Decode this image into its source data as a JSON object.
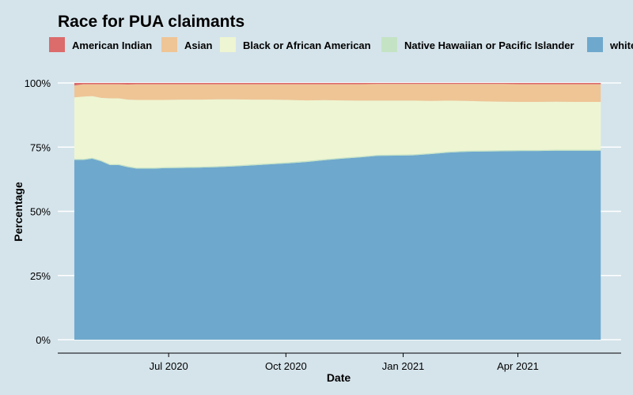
{
  "chart_data": {
    "type": "area",
    "stacked": true,
    "normalized": true,
    "title": "Race for PUA claimants",
    "xlabel": "Date",
    "ylabel": "Percentage",
    "ylim": [
      0,
      100
    ],
    "yticks": [
      "0%",
      "25%",
      "50%",
      "75%",
      "100%"
    ],
    "xticks": [
      {
        "label": "Jul 2020",
        "date": "2020-07-01"
      },
      {
        "label": "Oct 2020",
        "date": "2020-10-01"
      },
      {
        "label": "Jan 2021",
        "date": "2021-01-01"
      },
      {
        "label": "Apr 2021",
        "date": "2021-04-01"
      }
    ],
    "legend_position": "top",
    "dates": [
      "2020-04-18",
      "2020-04-25",
      "2020-05-02",
      "2020-05-09",
      "2020-05-16",
      "2020-05-23",
      "2020-05-30",
      "2020-06-06",
      "2020-06-13",
      "2020-06-20",
      "2020-06-27",
      "2020-07-11",
      "2020-07-25",
      "2020-08-08",
      "2020-08-22",
      "2020-09-05",
      "2020-09-19",
      "2020-10-03",
      "2020-10-17",
      "2020-10-31",
      "2020-11-14",
      "2020-11-28",
      "2020-12-12",
      "2020-12-26",
      "2021-01-09",
      "2021-01-23",
      "2021-02-06",
      "2021-02-20",
      "2021-03-06",
      "2021-03-20",
      "2021-04-03",
      "2021-04-17",
      "2021-05-01",
      "2021-05-15",
      "2021-05-29",
      "2021-06-05"
    ],
    "series": [
      {
        "name": "white",
        "color": "#6fa8cd",
        "values": [
          70.0,
          70.0,
          70.5,
          69.5,
          68.0,
          68.0,
          67.2,
          66.6,
          66.6,
          66.6,
          66.8,
          66.9,
          67.0,
          67.2,
          67.5,
          67.9,
          68.3,
          68.7,
          69.2,
          69.9,
          70.5,
          71.0,
          71.6,
          71.7,
          71.8,
          72.3,
          72.9,
          73.2,
          73.3,
          73.4,
          73.5,
          73.5,
          73.6,
          73.6,
          73.6,
          73.6
        ]
      },
      {
        "name": "Native Hawaiian or Pacific Islander",
        "color": "#c4e3c4",
        "values": [
          0.4,
          0.4,
          0.4,
          0.4,
          0.4,
          0.4,
          0.4,
          0.4,
          0.4,
          0.4,
          0.4,
          0.4,
          0.4,
          0.4,
          0.4,
          0.4,
          0.4,
          0.4,
          0.4,
          0.4,
          0.4,
          0.4,
          0.4,
          0.4,
          0.4,
          0.4,
          0.4,
          0.4,
          0.4,
          0.4,
          0.4,
          0.4,
          0.4,
          0.4,
          0.4,
          0.4
        ]
      },
      {
        "name": "Black or African American",
        "color": "#eef5d2",
        "values": [
          24.0,
          24.3,
          24.0,
          24.3,
          25.6,
          25.6,
          25.9,
          26.4,
          26.4,
          26.4,
          26.2,
          26.2,
          26.1,
          26.0,
          25.7,
          25.2,
          24.8,
          24.3,
          23.6,
          23.0,
          22.3,
          21.7,
          21.1,
          21.0,
          20.9,
          20.3,
          19.8,
          19.4,
          19.1,
          18.9,
          18.7,
          18.7,
          18.7,
          18.6,
          18.6,
          18.6
        ]
      },
      {
        "name": "Asian",
        "color": "#efc596",
        "values": [
          4.6,
          4.8,
          4.6,
          5.3,
          5.5,
          5.5,
          5.9,
          6.1,
          6.1,
          6.1,
          6.1,
          6.0,
          6.0,
          5.9,
          5.9,
          6.0,
          6.0,
          6.1,
          6.3,
          6.2,
          6.3,
          6.4,
          6.5,
          6.5,
          6.5,
          6.6,
          6.5,
          6.6,
          6.8,
          6.9,
          6.9,
          6.9,
          6.8,
          6.9,
          6.9,
          6.9
        ]
      },
      {
        "name": "American Indian",
        "color": "#dc6b6b",
        "values": [
          1.0,
          0.5,
          0.5,
          0.5,
          0.5,
          0.5,
          0.6,
          0.5,
          0.5,
          0.5,
          0.5,
          0.5,
          0.5,
          0.5,
          0.5,
          0.5,
          0.5,
          0.5,
          0.5,
          0.5,
          0.5,
          0.5,
          0.4,
          0.4,
          0.4,
          0.4,
          0.4,
          0.4,
          0.4,
          0.4,
          0.5,
          0.5,
          0.5,
          0.5,
          0.5,
          0.5
        ]
      }
    ],
    "legend_order": [
      "American Indian",
      "Asian",
      "Black or African American",
      "Native Hawaiian or Pacific Islander",
      "white"
    ],
    "legend_display": [
      "American Indian",
      "Asian",
      "Black or African American",
      "Native Hawaiian or Pacific Islander",
      "white"
    ]
  }
}
